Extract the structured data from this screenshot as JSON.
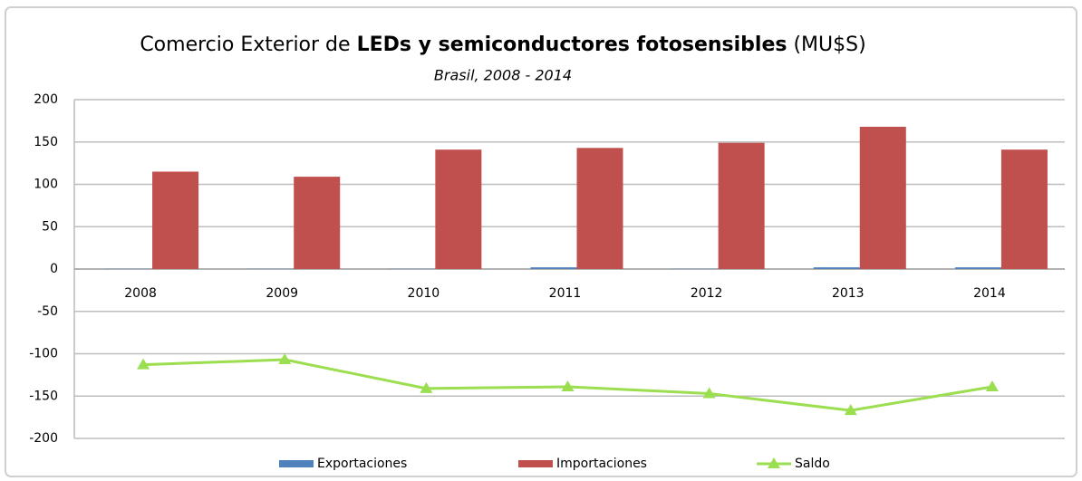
{
  "chart_data": {
    "type": "bar_line",
    "title": [
      "Comercio Exterior de",
      "LEDs y semiconductores fotosensibles",
      "(MU$S)"
    ],
    "subtitle": "Brasil, 2008 - 2014",
    "categories": [
      "2008",
      "2009",
      "2010",
      "2011",
      "2012",
      "2013",
      "2014"
    ],
    "series": [
      {
        "name": "Exportaciones",
        "type": "bar",
        "color": "#4f81bd",
        "values": [
          0.3,
          0.3,
          0.3,
          2,
          0.3,
          2,
          2
        ]
      },
      {
        "name": "Importaciones",
        "type": "bar",
        "color": "#c0504d",
        "values": [
          115,
          109,
          141,
          143,
          149,
          168,
          141
        ]
      },
      {
        "name": "Saldo",
        "type": "line",
        "color": "#9bde4f",
        "values": [
          -113,
          -107,
          -141,
          -139,
          -147,
          -167,
          -139
        ]
      }
    ],
    "ylim": [
      -200,
      200
    ],
    "yticks": [
      -200,
      -150,
      -100,
      -50,
      0,
      50,
      100,
      150,
      200
    ],
    "grid": true,
    "legend": "bottom"
  }
}
